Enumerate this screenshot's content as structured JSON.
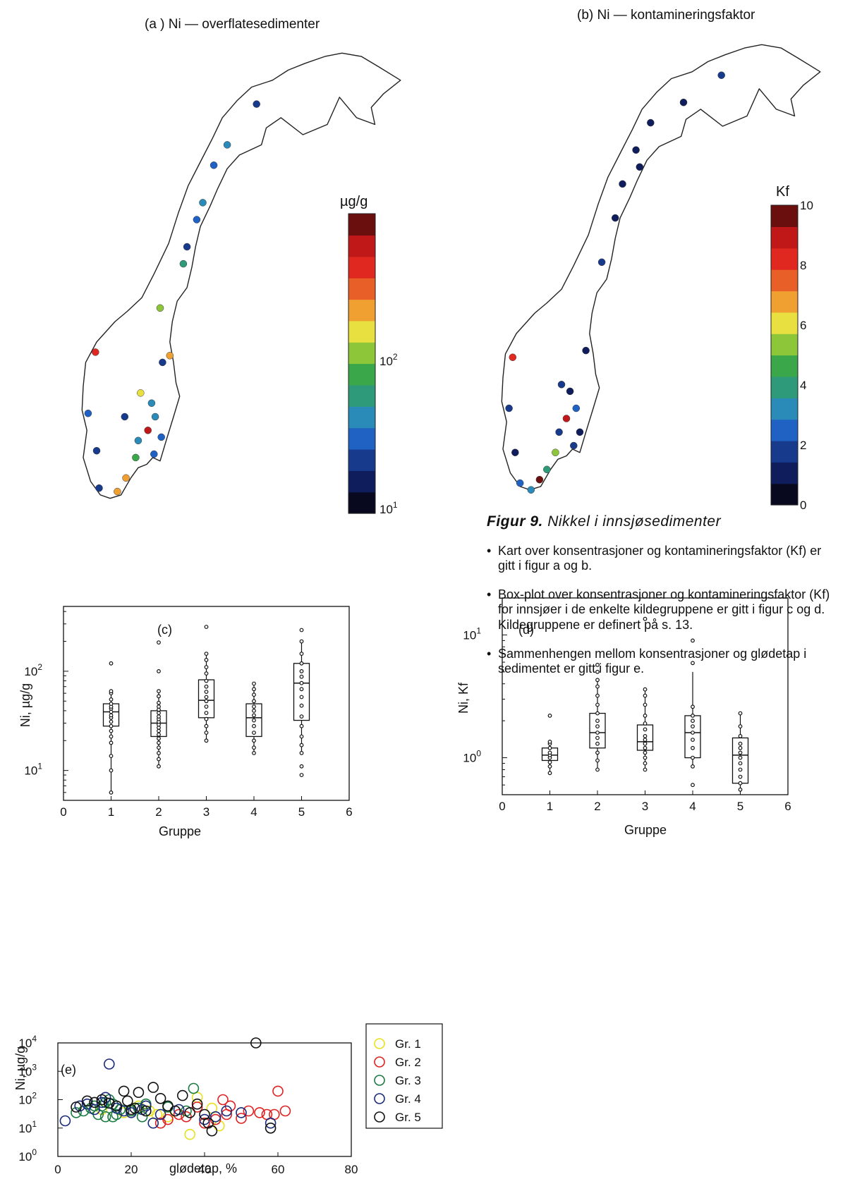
{
  "panels": {
    "a": {
      "title": "(a ) Ni — overflatesedimenter",
      "cb_unit": "µg/g",
      "cb_ticks": [
        "10",
        "10"
      ],
      "cb_tick_exps": [
        "2",
        "1"
      ]
    },
    "b": {
      "title": "(b) Ni — kontamineringsfaktor",
      "cb_unit": "Kf",
      "cb_ticks": [
        "10",
        "8",
        "6",
        "4",
        "2",
        "0"
      ]
    },
    "c": {
      "tag": "(c)",
      "ylabel": "Ni, µg/g",
      "xlabel": "Gruppe"
    },
    "d": {
      "tag": "(d)",
      "ylabel": "Ni, Kf",
      "xlabel": "Gruppe"
    },
    "e": {
      "tag": "(e)",
      "ylabel": "Ni, µg/g",
      "xlabel": "glødetap, %"
    }
  },
  "colors": {
    "gr1": "#e8e020",
    "gr2": "#e02020",
    "gr3": "#1a7a40",
    "gr4": "#1a2a7a",
    "gr5": "#111111",
    "colormap": [
      "#08081e",
      "#0f1d5c",
      "#173a8c",
      "#1f62c4",
      "#2a8ab8",
      "#2f9a7a",
      "#3aa84a",
      "#8ec63a",
      "#e8e040",
      "#f0a030",
      "#e86028",
      "#e02820",
      "#c01818",
      "#6a0e0e"
    ]
  },
  "map_points_a": [
    {
      "lon": 19.2,
      "lat": 69.6,
      "value": 25
    },
    {
      "lon": 16.8,
      "lat": 68.4,
      "value": 40
    },
    {
      "lon": 15.7,
      "lat": 67.8,
      "value": 35
    },
    {
      "lon": 14.8,
      "lat": 66.7,
      "value": 50
    },
    {
      "lon": 14.3,
      "lat": 66.2,
      "value": 30
    },
    {
      "lon": 13.5,
      "lat": 65.4,
      "value": 20
    },
    {
      "lon": 13.2,
      "lat": 64.9,
      "value": 60
    },
    {
      "lon": 11.3,
      "lat": 63.6,
      "value": 100
    },
    {
      "lon": 12.1,
      "lat": 62.2,
      "value": 200
    },
    {
      "lon": 11.5,
      "lat": 62.0,
      "value": 25
    },
    {
      "lon": 6.0,
      "lat": 62.3,
      "value": 500
    },
    {
      "lon": 9.7,
      "lat": 61.1,
      "value": 180
    },
    {
      "lon": 10.6,
      "lat": 60.8,
      "value": 45
    },
    {
      "lon": 10.3,
      "lat": 60.0,
      "value": 600
    },
    {
      "lon": 10.9,
      "lat": 60.4,
      "value": 45
    },
    {
      "lon": 11.4,
      "lat": 59.8,
      "value": 30
    },
    {
      "lon": 9.5,
      "lat": 59.7,
      "value": 40
    },
    {
      "lon": 8.4,
      "lat": 60.4,
      "value": 20
    },
    {
      "lon": 5.4,
      "lat": 60.5,
      "value": 35
    },
    {
      "lon": 6.1,
      "lat": 59.4,
      "value": 25
    },
    {
      "lon": 7.8,
      "lat": 58.2,
      "value": 250
    },
    {
      "lon": 8.5,
      "lat": 58.6,
      "value": 200
    },
    {
      "lon": 9.3,
      "lat": 59.2,
      "value": 80
    },
    {
      "lon": 6.3,
      "lat": 58.3,
      "value": 20
    },
    {
      "lon": 10.8,
      "lat": 59.3,
      "value": 30
    }
  ],
  "map_points_b": [
    {
      "lon": 22.9,
      "lat": 70.2,
      "value": 1.5
    },
    {
      "lon": 19.8,
      "lat": 69.4,
      "value": 1.2
    },
    {
      "lon": 17.1,
      "lat": 68.8,
      "value": 1.3
    },
    {
      "lon": 15.9,
      "lat": 68.0,
      "value": 1.4
    },
    {
      "lon": 16.2,
      "lat": 67.5,
      "value": 1.2
    },
    {
      "lon": 14.8,
      "lat": 67.0,
      "value": 1.1
    },
    {
      "lon": 14.2,
      "lat": 66.0,
      "value": 1.3
    },
    {
      "lon": 13.1,
      "lat": 64.7,
      "value": 1.5
    },
    {
      "lon": 11.8,
      "lat": 62.1,
      "value": 1.2
    },
    {
      "lon": 5.8,
      "lat": 61.9,
      "value": 8.0
    },
    {
      "lon": 9.8,
      "lat": 61.1,
      "value": 1.8
    },
    {
      "lon": 10.5,
      "lat": 60.9,
      "value": 1.3
    },
    {
      "lon": 10.2,
      "lat": 60.1,
      "value": 9.2
    },
    {
      "lon": 11.0,
      "lat": 60.4,
      "value": 2.8
    },
    {
      "lon": 9.6,
      "lat": 59.7,
      "value": 1.6
    },
    {
      "lon": 11.3,
      "lat": 59.7,
      "value": 1.2
    },
    {
      "lon": 5.5,
      "lat": 60.4,
      "value": 2.0
    },
    {
      "lon": 6.0,
      "lat": 59.1,
      "value": 1.3
    },
    {
      "lon": 8.0,
      "lat": 58.3,
      "value": 9.6
    },
    {
      "lon": 8.6,
      "lat": 58.6,
      "value": 4.0
    },
    {
      "lon": 9.3,
      "lat": 59.1,
      "value": 5.2
    },
    {
      "lon": 6.4,
      "lat": 58.2,
      "value": 2.4
    },
    {
      "lon": 10.8,
      "lat": 59.3,
      "value": 1.5
    },
    {
      "lon": 7.3,
      "lat": 58.0,
      "value": 3.0
    }
  ],
  "chart_data": [
    {
      "type": "boxplot",
      "panel": "c",
      "xlabel": "Gruppe",
      "ylabel": "Ni, µg/g",
      "xlim": [
        0,
        6
      ],
      "ylim": [
        5,
        450
      ],
      "yscale": "log",
      "xticks": [
        0,
        1,
        2,
        3,
        4,
        5,
        6
      ],
      "groups": [
        {
          "x": 1,
          "q1": 28,
          "median": 39,
          "q3": 47,
          "wlo": 6,
          "whi": 63,
          "points": [
            6,
            10,
            14,
            19,
            22,
            25,
            28,
            31,
            34,
            36,
            39,
            42,
            44,
            47,
            52,
            60,
            63,
            120
          ]
        },
        {
          "x": 2,
          "q1": 22,
          "median": 30,
          "q3": 40,
          "wlo": 11,
          "whi": 63,
          "points": [
            11,
            13,
            15,
            17,
            19,
            21,
            23,
            25,
            27,
            29,
            31,
            33,
            35,
            38,
            41,
            44,
            48,
            56,
            63,
            100,
            195
          ]
        },
        {
          "x": 3,
          "q1": 34,
          "median": 51,
          "q3": 82,
          "wlo": 20,
          "whi": 150,
          "points": [
            20,
            24,
            28,
            33,
            38,
            44,
            50,
            55,
            62,
            70,
            80,
            95,
            110,
            130,
            150,
            280
          ]
        },
        {
          "x": 4,
          "q1": 22,
          "median": 34,
          "q3": 47,
          "wlo": 15,
          "whi": 75,
          "points": [
            15,
            17,
            20,
            24,
            28,
            32,
            36,
            40,
            44,
            50,
            58,
            66,
            75
          ]
        },
        {
          "x": 5,
          "q1": 32,
          "median": 76,
          "q3": 120,
          "wlo": 15,
          "whi": 200,
          "points": [
            9,
            11,
            15,
            18,
            22,
            28,
            35,
            45,
            55,
            66,
            76,
            88,
            100,
            120,
            150,
            200,
            260
          ]
        }
      ]
    },
    {
      "type": "boxplot",
      "panel": "d",
      "xlabel": "Gruppe",
      "ylabel": "Ni, Kf",
      "xlim": [
        0,
        6
      ],
      "ylim": [
        0.5,
        20
      ],
      "yscale": "log",
      "xticks": [
        0,
        1,
        2,
        3,
        4,
        5,
        6
      ],
      "groups": [
        {
          "x": 1,
          "q1": 0.95,
          "median": 1.05,
          "q3": 1.2,
          "wlo": 0.75,
          "whi": 1.35,
          "points": [
            0.75,
            0.85,
            0.92,
            1.0,
            1.05,
            1.1,
            1.2,
            1.3,
            1.35,
            2.2
          ]
        },
        {
          "x": 2,
          "q1": 1.2,
          "median": 1.6,
          "q3": 2.3,
          "wlo": 0.8,
          "whi": 4.3,
          "points": [
            0.8,
            0.95,
            1.1,
            1.3,
            1.45,
            1.6,
            1.8,
            2.0,
            2.3,
            2.7,
            3.2,
            3.8,
            4.3,
            5.0,
            5.7
          ]
        },
        {
          "x": 3,
          "q1": 1.15,
          "median": 1.35,
          "q3": 1.85,
          "wlo": 0.8,
          "whi": 3.6,
          "points": [
            0.8,
            0.9,
            1.0,
            1.1,
            1.2,
            1.3,
            1.4,
            1.5,
            1.7,
            1.9,
            2.2,
            2.7,
            3.2,
            3.6,
            13.5
          ]
        },
        {
          "x": 4,
          "q1": 1.0,
          "median": 1.6,
          "q3": 2.2,
          "wlo": 0.85,
          "whi": 5.0,
          "points": [
            0.6,
            0.85,
            1.0,
            1.2,
            1.4,
            1.6,
            1.8,
            2.0,
            2.2,
            2.6,
            5.9,
            9.0
          ]
        },
        {
          "x": 5,
          "q1": 0.62,
          "median": 1.05,
          "q3": 1.45,
          "wlo": 0.55,
          "whi": 2.3,
          "points": [
            0.55,
            0.62,
            0.7,
            0.8,
            0.9,
            1.0,
            1.1,
            1.2,
            1.3,
            1.5,
            1.8,
            2.3
          ]
        }
      ]
    },
    {
      "type": "scatter",
      "panel": "e",
      "xlabel": "glødetap, %",
      "ylabel": "Ni, µg/g",
      "xlim": [
        0,
        80
      ],
      "ylim": [
        1,
        10000
      ],
      "yscale": "log",
      "xticks": [
        0,
        20,
        40,
        60,
        80
      ],
      "series": [
        {
          "name": "Gr. 1",
          "x": [
            38,
            42,
            44,
            36,
            27,
            30,
            12,
            22,
            18,
            25
          ],
          "y": [
            120,
            50,
            12,
            6,
            30,
            25,
            45,
            60,
            35,
            40
          ]
        },
        {
          "name": "Gr. 2",
          "x": [
            45,
            47,
            52,
            55,
            57,
            59,
            60,
            62,
            46,
            43,
            40,
            35,
            38,
            50,
            33,
            30,
            28
          ],
          "y": [
            100,
            60,
            40,
            35,
            30,
            30,
            200,
            40,
            30,
            20,
            15,
            25,
            55,
            22,
            30,
            20,
            15
          ]
        },
        {
          "name": "Gr. 3",
          "x": [
            5,
            7,
            9,
            10,
            12,
            13,
            14,
            15,
            16,
            17,
            20,
            22,
            24,
            30,
            35,
            37,
            11,
            13,
            15,
            23
          ],
          "y": [
            35,
            40,
            50,
            60,
            60,
            80,
            100,
            70,
            30,
            45,
            40,
            50,
            70,
            55,
            40,
            250,
            30,
            25,
            25,
            25
          ]
        },
        {
          "name": "Gr. 4",
          "x": [
            2,
            6,
            8,
            10,
            12,
            14,
            16,
            18,
            20,
            24,
            26,
            28,
            40,
            43,
            46,
            50,
            58,
            13,
            23,
            33
          ],
          "y": [
            18,
            60,
            70,
            45,
            80,
            1800,
            50,
            40,
            35,
            60,
            15,
            30,
            20,
            25,
            40,
            35,
            15,
            120,
            45,
            45
          ]
        },
        {
          "name": "Gr. 5",
          "x": [
            5,
            8,
            10,
            12,
            14,
            16,
            18,
            19,
            20,
            21,
            22,
            24,
            26,
            28,
            30,
            32,
            34,
            36,
            38,
            40,
            41,
            42,
            54,
            58
          ],
          "y": [
            55,
            90,
            80,
            100,
            75,
            60,
            200,
            90,
            45,
            50,
            180,
            40,
            270,
            110,
            60,
            40,
            140,
            35,
            70,
            30,
            15,
            8,
            10000,
            10
          ]
        }
      ]
    }
  ],
  "legend_e": [
    "Gr. 1",
    "Gr. 2",
    "Gr. 3",
    "Gr. 4",
    "Gr. 5"
  ],
  "caption": {
    "title_bold": "Figur 9.",
    "title_rest": "Nikkel i innsjøsedimenter",
    "bullets": [
      "Kart over konsentrasjoner og kontamin­eringsfaktor (Kf) er gitt i figur a og b.",
      "Box-plot over konsentrasjoner og kontamineringsfaktor (Kf) for innsjøer i de enkelte kildegruppene er gitt i figur c og d. Kildegruppene er definert på s. 13.",
      "Sammenhengen mellom konsentrasjoner og glødetap i sedimentet er gitt i figur e."
    ]
  }
}
